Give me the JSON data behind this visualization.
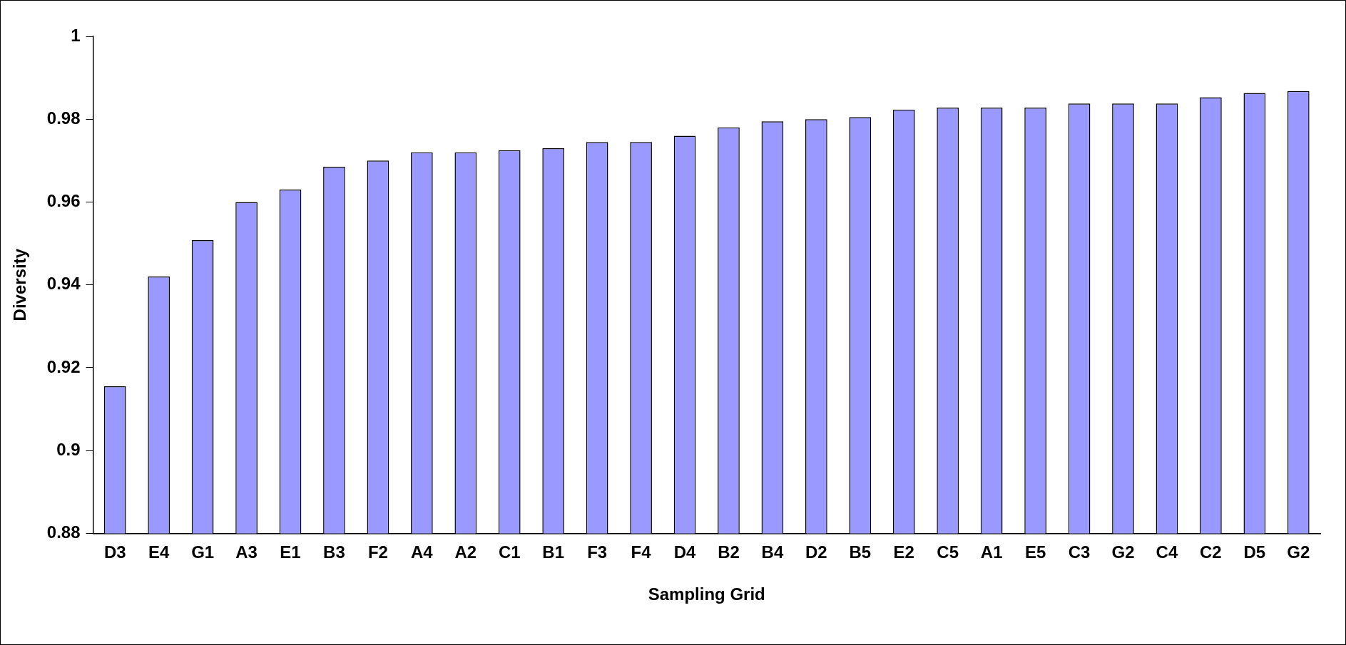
{
  "chart_data": {
    "type": "bar",
    "xlabel": "Sampling Grid",
    "ylabel": "Diversity",
    "categories": [
      "D3",
      "E4",
      "G1",
      "A3",
      "E1",
      "B3",
      "F2",
      "A4",
      "A2",
      "C1",
      "B1",
      "F3",
      "F4",
      "D4",
      "B2",
      "B4",
      "D2",
      "B5",
      "E2",
      "C5",
      "A1",
      "E5",
      "C3",
      "G2",
      "C4",
      "C2",
      "D5",
      "G2"
    ],
    "values": [
      0.9155,
      0.942,
      0.9508,
      0.96,
      0.963,
      0.9685,
      0.97,
      0.972,
      0.972,
      0.9725,
      0.973,
      0.9745,
      0.9745,
      0.976,
      0.978,
      0.9795,
      0.98,
      0.9805,
      0.9823,
      0.9828,
      0.9828,
      0.9828,
      0.9838,
      0.9838,
      0.9838,
      0.9853,
      0.9863,
      0.9868
    ],
    "color": "#9999ff",
    "ylim": [
      0.88,
      1
    ],
    "yticks": [
      0.88,
      0.9,
      0.92,
      0.94,
      0.96,
      0.98,
      1
    ],
    "grid": false,
    "legend": false
  }
}
